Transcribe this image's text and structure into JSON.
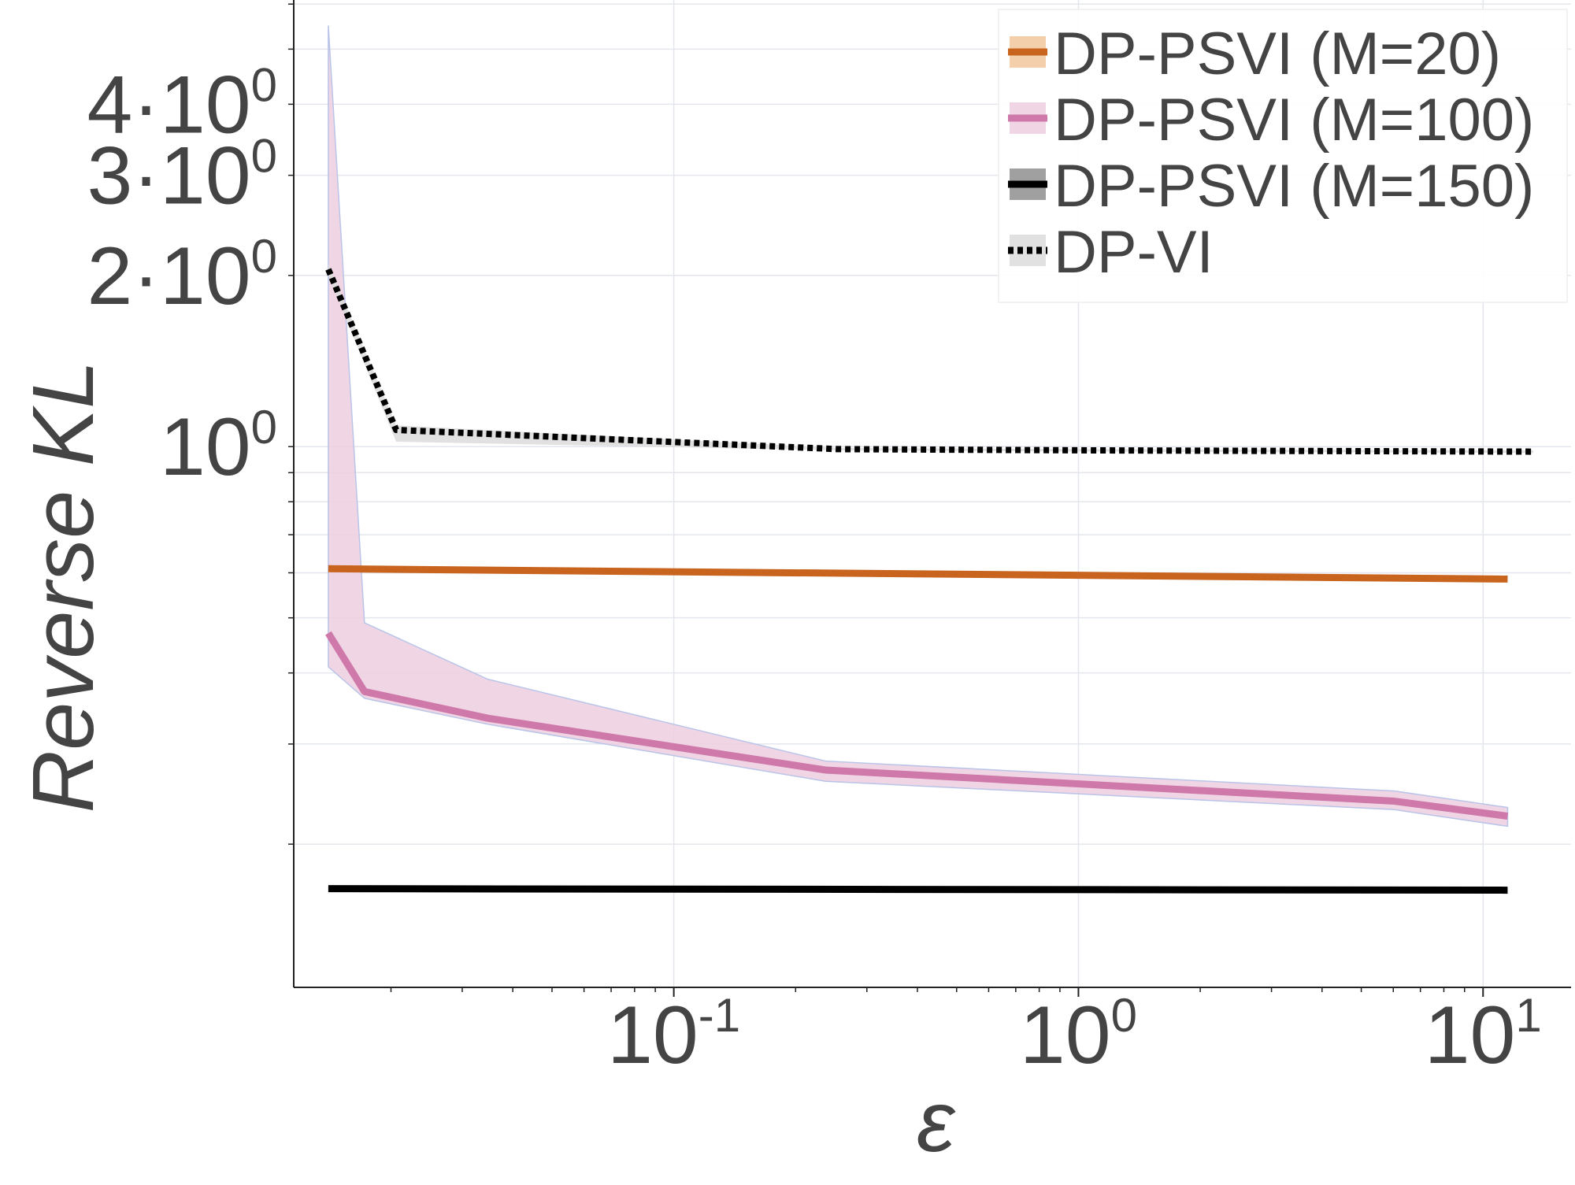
{
  "chart_data": {
    "type": "line",
    "title": "",
    "xlabel": "ε",
    "ylabel": "Reverse KL",
    "x_scale": "log",
    "y_scale": "log",
    "xlim": [
      0.0115,
      16.5
    ],
    "ylim": [
      0.112,
      6.1
    ],
    "grid": true,
    "legend_position": "top-right",
    "x_ticks": [
      {
        "value": 0.1,
        "base": "10",
        "exp": "-1"
      },
      {
        "value": 1,
        "base": "10",
        "exp": "0"
      },
      {
        "value": 10,
        "base": "10",
        "exp": "1"
      }
    ],
    "y_ticks": [
      {
        "value": 1,
        "mant": "",
        "base": "10",
        "exp": "0"
      },
      {
        "value": 2,
        "mant": "2·",
        "base": "10",
        "exp": "0"
      },
      {
        "value": 3,
        "mant": "3·",
        "base": "10",
        "exp": "0"
      },
      {
        "value": 4,
        "mant": "4·",
        "base": "10",
        "exp": "0"
      }
    ],
    "series": [
      {
        "name": "DP-PSVI (M=20)",
        "color": "#c8641e",
        "band_color": "#f2c79e",
        "dash": false,
        "x": [
          0.014,
          11.5
        ],
        "y": [
          0.61,
          0.585
        ],
        "lower": [
          0.608,
          0.582
        ],
        "upper": [
          0.614,
          0.588
        ]
      },
      {
        "name": "DP-PSVI (M=100)",
        "color": "#cf78aa",
        "band_color": "#edcfe0",
        "band_edge": "#b9c4e8",
        "dash": false,
        "x": [
          0.014,
          0.0172,
          0.0347,
          0.237,
          6.04,
          11.5
        ],
        "y": [
          0.47,
          0.371,
          0.333,
          0.27,
          0.238,
          0.224
        ],
        "lower": [
          0.41,
          0.361,
          0.325,
          0.258,
          0.23,
          0.215
        ],
        "upper": [
          5.5,
          0.49,
          0.39,
          0.28,
          0.248,
          0.232
        ]
      },
      {
        "name": "DP-PSVI (M=150)",
        "color": "#000000",
        "band_color": "#8f8f8f",
        "dash": false,
        "x": [
          0.014,
          11.5
        ],
        "y": [
          0.167,
          0.166
        ],
        "lower": [
          0.166,
          0.165
        ],
        "upper": [
          0.168,
          0.167
        ]
      },
      {
        "name": "DP-VI",
        "color": "#000000",
        "band_color": "#dcdcdc",
        "dash": true,
        "x": [
          0.014,
          0.0206,
          0.254,
          1.08,
          13.3
        ],
        "y": [
          2.05,
          1.07,
          0.99,
          0.985,
          0.98
        ],
        "lower": [
          2.0,
          1.02,
          0.985,
          0.98,
          0.975
        ],
        "upper": [
          2.1,
          1.09,
          0.995,
          0.99,
          0.985
        ]
      }
    ]
  }
}
